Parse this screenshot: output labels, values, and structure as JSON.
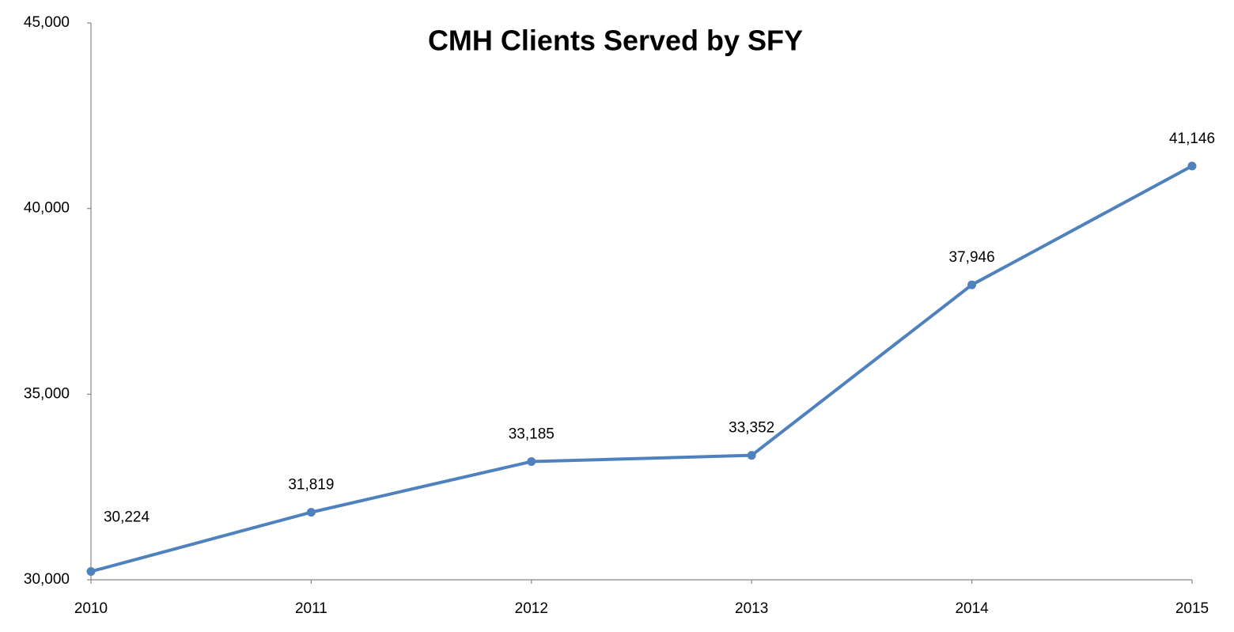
{
  "chart_data": {
    "type": "line",
    "title": "CMH Clients Served by SFY",
    "x": [
      2010,
      2011,
      2012,
      2013,
      2014,
      2015
    ],
    "xlim": [
      2010,
      2015
    ],
    "xticks": [
      2010,
      2011,
      2012,
      2013,
      2014,
      2015
    ],
    "series": [
      {
        "color": "#4f81bd",
        "values": [
          30224,
          31819,
          33185,
          33352,
          37946,
          41146
        ],
        "value_labels": [
          "30,224",
          "31,819",
          "33,185",
          "33,352",
          "37,946",
          "41,146"
        ]
      }
    ],
    "ylim": [
      30000,
      45000
    ],
    "yticks": [
      {
        "value": 30000,
        "label": "30,000"
      },
      {
        "value": 35000,
        "label": "35,000"
      },
      {
        "value": 40000,
        "label": "40,000"
      },
      {
        "value": 45000,
        "label": "45,000"
      }
    ],
    "grid": false
  }
}
